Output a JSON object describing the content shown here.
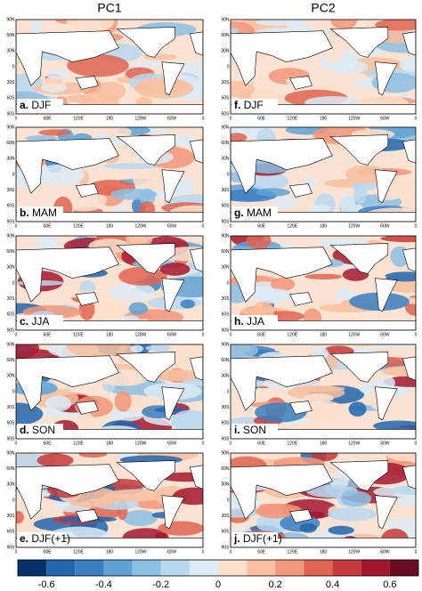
{
  "columns": [
    "PC1",
    "PC2"
  ],
  "panels": [
    {
      "letter": "a.",
      "season": "DJF"
    },
    {
      "letter": "f.",
      "season": "DJF"
    },
    {
      "letter": "b.",
      "season": "MAM"
    },
    {
      "letter": "g.",
      "season": "MAM"
    },
    {
      "letter": "c.",
      "season": "JJA"
    },
    {
      "letter": "h.",
      "season": "JJA"
    },
    {
      "letter": "d.",
      "season": "SON"
    },
    {
      "letter": "i.",
      "season": "SON"
    },
    {
      "letter": "e.",
      "season": "DJF(+1)"
    },
    {
      "letter": "j.",
      "season": "DJF(+1)"
    }
  ],
  "lat_ticks": [
    "90N",
    "60N",
    "30N",
    "0",
    "30S",
    "60S",
    "90S"
  ],
  "lon_ticks": [
    "0",
    "60E",
    "120E",
    "180",
    "120W",
    "60W",
    "0"
  ],
  "colorbar": {
    "labels": [
      "-0.6",
      "-0.4",
      "-0.2",
      "0",
      "0.2",
      "0.4",
      "0.6"
    ],
    "colors": [
      "#08306b",
      "#2166ac",
      "#3a7fc0",
      "#5fa2d3",
      "#8cc0e3",
      "#b8d8ee",
      "#dcebf5",
      "#fde0cc",
      "#f8bfa0",
      "#f1977a",
      "#df6552",
      "#c63a3b",
      "#a3172d",
      "#6b0d22"
    ]
  }
}
